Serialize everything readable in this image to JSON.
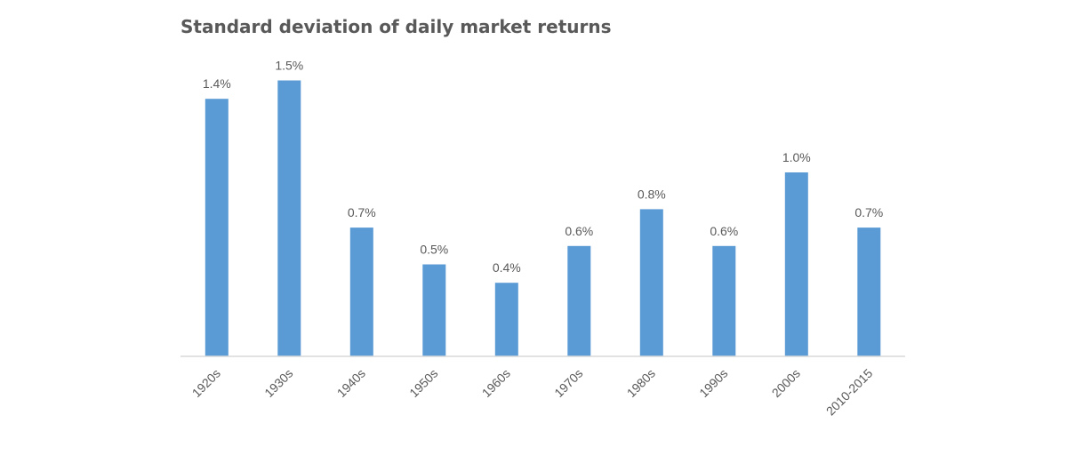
{
  "chart_data": {
    "type": "bar",
    "title": "Standard deviation of daily market returns",
    "categories": [
      "1920s",
      "1930s",
      "1940s",
      "1950s",
      "1960s",
      "1970s",
      "1980s",
      "1990s",
      "2000s",
      "2010-2015"
    ],
    "values": [
      1.4,
      1.5,
      0.7,
      0.5,
      0.4,
      0.6,
      0.8,
      0.6,
      1.0,
      0.7
    ],
    "data_labels": [
      "1.4%",
      "1.5%",
      "0.7%",
      "0.5%",
      "0.4%",
      "0.6%",
      "0.8%",
      "0.6%",
      "1.0%",
      "0.7%"
    ],
    "unit": "%",
    "xlabel": "",
    "ylabel": "",
    "ylim": [
      0,
      1.6
    ],
    "grid": false,
    "legend": "none",
    "bar_color": "#5B9BD5",
    "axis_color": "#D9D9D9",
    "text_color": "#595959"
  }
}
